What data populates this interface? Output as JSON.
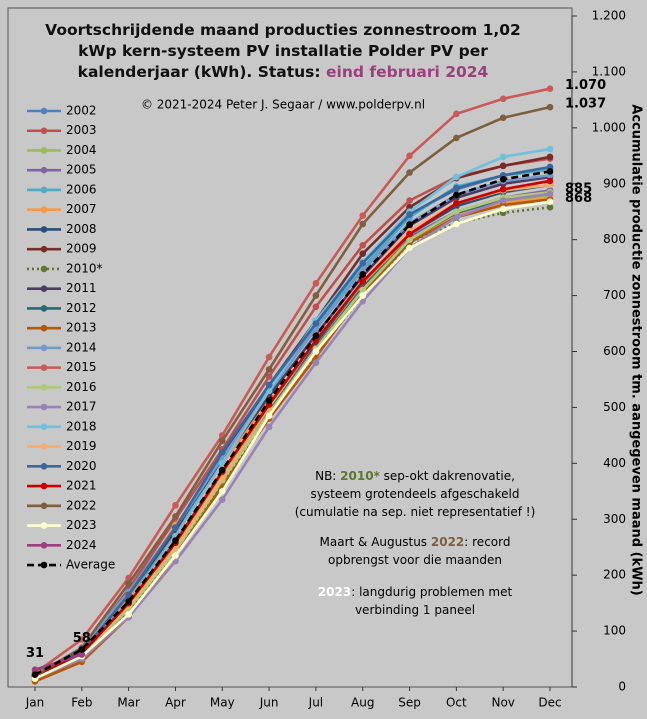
{
  "chart_data": {
    "type": "line",
    "title": [
      [
        {
          "text": "Voortschrijdende maand producties zonnestroom 1,02"
        }
      ],
      [
        {
          "text": "kWp kern-systeem PV installatie Polder PV per"
        }
      ],
      [
        {
          "text": "kalenderjaar (kWh). Status: "
        },
        {
          "text": "eind februari 2024",
          "color": "#9b3f7f"
        }
      ]
    ],
    "subtitle": "© 2021-2024 Peter J. Segaar / www.polderpv.nl",
    "y_label": "Accumulatie productie zonnestroom tm. aangegeven maand (kWh)",
    "notes": [
      [
        {
          "text": "NB: "
        },
        {
          "text": "2010*",
          "color": "#5f7530",
          "bold": true
        },
        {
          "text": " sep-okt dakrenovatie,"
        }
      ],
      [
        {
          "text": "systeem grotendeels afgeschakeld"
        }
      ],
      [
        {
          "text": "(cumulatie na sep. niet representatief !)"
        }
      ],
      [
        {
          "text": "Maart & Augustus "
        },
        {
          "text": "2022",
          "color": "#7f5f3f",
          "bold": true
        },
        {
          "text": ": record"
        }
      ],
      [
        {
          "text": "opbrengst voor die maanden"
        }
      ],
      [
        {
          "text": "2023",
          "color": "#ffffff",
          "bold": true
        },
        {
          "text": ": langdurig problemen met"
        }
      ],
      [
        {
          "text": "verbinding 1 paneel"
        }
      ]
    ],
    "categories": [
      "Jan",
      "Feb",
      "Mar",
      "Apr",
      "May",
      "Jun",
      "Jul",
      "Aug",
      "Sep",
      "Oct",
      "Nov",
      "Dec"
    ],
    "ylim": [
      0,
      1200
    ],
    "yticks": [
      0,
      100,
      200,
      300,
      400,
      500,
      600,
      700,
      800,
      900,
      {
        "value": 1000,
        "label": "1.000"
      },
      {
        "value": 1100,
        "label": "1.100"
      },
      {
        "value": 1200,
        "label": "1.200"
      }
    ],
    "y_axis_side": "right",
    "grid": false,
    "series": [
      {
        "name": "2002",
        "color": "#4f81bd",
        "values": [
          18,
          55,
          150,
          270,
          410,
          540,
          650,
          760,
          845,
          890,
          915,
          928
        ]
      },
      {
        "name": "2003",
        "color": "#c0504d",
        "values": [
          20,
          65,
          175,
          300,
          425,
          555,
          680,
          790,
          870,
          912,
          932,
          945
        ]
      },
      {
        "name": "2004",
        "color": "#9bbb59",
        "values": [
          12,
          50,
          135,
          245,
          370,
          495,
          600,
          710,
          800,
          845,
          868,
          880
        ]
      },
      {
        "name": "2005",
        "color": "#8064a2",
        "values": [
          15,
          55,
          140,
          255,
          375,
          500,
          610,
          715,
          805,
          850,
          875,
          888
        ]
      },
      {
        "name": "2006",
        "color": "#4bacc6",
        "values": [
          20,
          62,
          160,
          275,
          400,
          525,
          645,
          750,
          840,
          895,
          915,
          925
        ]
      },
      {
        "name": "2007",
        "color": "#f79646",
        "values": [
          22,
          70,
          160,
          290,
          400,
          510,
          615,
          720,
          800,
          845,
          865,
          875
        ]
      },
      {
        "name": "2008",
        "color": "#2c4d75",
        "values": [
          18,
          60,
          150,
          260,
          385,
          505,
          615,
          725,
          810,
          860,
          885,
          898
        ]
      },
      {
        "name": "2009",
        "color": "#772c2a",
        "values": [
          20,
          65,
          165,
          280,
          415,
          540,
          655,
          775,
          858,
          910,
          932,
          948
        ]
      },
      {
        "name": "2010*",
        "color": "#5f7530",
        "linestyle": "dotted",
        "values": [
          12,
          50,
          135,
          245,
          365,
          490,
          595,
          700,
          795,
          830,
          848,
          858
        ]
      },
      {
        "name": "2011",
        "color": "#4d3b62",
        "values": [
          20,
          68,
          170,
          285,
          405,
          520,
          630,
          735,
          825,
          875,
          900,
          912
        ]
      },
      {
        "name": "2012",
        "color": "#276a7c",
        "labels": "last",
        "values": [
          15,
          55,
          140,
          250,
          375,
          495,
          605,
          715,
          800,
          848,
          872,
          885
        ]
      },
      {
        "name": "2013",
        "color": "#b65708",
        "values": [
          10,
          45,
          125,
          235,
          360,
          480,
          590,
          705,
          795,
          840,
          862,
          872
        ]
      },
      {
        "name": "2014",
        "color": "#729aca",
        "values": [
          22,
          70,
          170,
          285,
          410,
          530,
          640,
          745,
          830,
          880,
          905,
          915
        ]
      },
      {
        "name": "2015",
        "color": "#c85a57",
        "labels": "last",
        "values": [
          25,
          85,
          195,
          325,
          450,
          590,
          722,
          843,
          950,
          1025,
          1052,
          1070
        ],
        "value_labels": [
          null,
          null,
          null,
          null,
          null,
          null,
          null,
          null,
          null,
          null,
          null,
          "1.070"
        ]
      },
      {
        "name": "2016",
        "color": "#afc97a",
        "values": [
          15,
          55,
          140,
          245,
          370,
          490,
          605,
          710,
          800,
          850,
          875,
          885
        ]
      },
      {
        "name": "2017",
        "color": "#9983b5",
        "values": [
          15,
          50,
          125,
          225,
          335,
          465,
          580,
          690,
          785,
          840,
          870,
          882
        ]
      },
      {
        "name": "2018",
        "color": "#70c0dd",
        "values": [
          18,
          60,
          150,
          270,
          400,
          530,
          655,
          760,
          850,
          912,
          948,
          962
        ]
      },
      {
        "name": "2019",
        "color": "#f9ab6b",
        "values": [
          18,
          60,
          145,
          250,
          375,
          500,
          620,
          725,
          815,
          865,
          888,
          898
        ]
      },
      {
        "name": "2020",
        "color": "#3a679c",
        "values": [
          20,
          62,
          165,
          285,
          420,
          540,
          650,
          758,
          845,
          892,
          915,
          930
        ]
      },
      {
        "name": "2021",
        "color": "#cc0000",
        "values": [
          18,
          60,
          150,
          258,
          385,
          505,
          620,
          725,
          810,
          865,
          890,
          905
        ]
      },
      {
        "name": "2022",
        "color": "#7f5f3f",
        "labels": "last",
        "values": [
          20,
          70,
          185,
          305,
          440,
          568,
          700,
          828,
          920,
          982,
          1018,
          1037
        ],
        "value_labels": [
          null,
          null,
          null,
          null,
          null,
          null,
          null,
          null,
          null,
          null,
          null,
          "1.037"
        ]
      },
      {
        "name": "2023",
        "color": "#ffffd0",
        "labels": "last",
        "values": [
          15,
          55,
          130,
          235,
          350,
          485,
          600,
          700,
          785,
          828,
          855,
          868
        ]
      },
      {
        "name": "2024",
        "color": "#9b3f7f",
        "labels": "all",
        "values": [
          31,
          58,
          null,
          null,
          null,
          null,
          null,
          null,
          null,
          null,
          null,
          null
        ]
      },
      {
        "name": "Average",
        "color": "#000000",
        "linestyle": "dashed",
        "values": [
          22,
          67,
          153,
          262,
          388,
          512,
          628,
          738,
          827,
          880,
          908,
          922
        ]
      }
    ]
  }
}
